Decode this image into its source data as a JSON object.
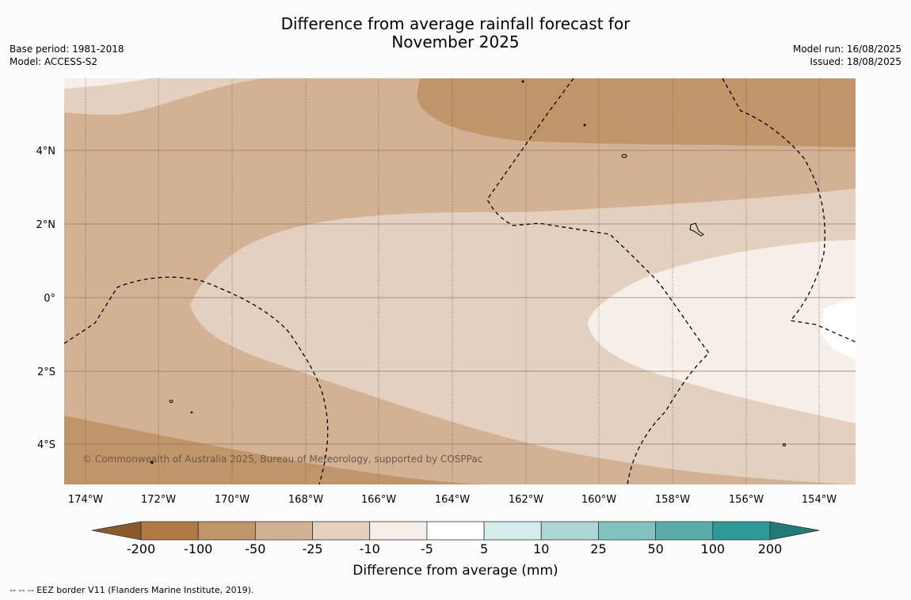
{
  "title_line1": "Difference from average rainfall forecast for",
  "title_line2": "November 2025",
  "base_period": "Base period: 1981-2018",
  "model": "Model: ACCESS-S2",
  "model_run": "Model run: 16/08/2025",
  "issued": "Issued: 18/08/2025",
  "credit": "© Commonwealth of Australia 2025, Bureau of Meteorology, supported by COSPPac",
  "footnote": "--  --  -- EEZ border V11 (Flanders Marine Institute, 2019).",
  "lon_ticks": [
    "174°W",
    "172°W",
    "170°W",
    "168°W",
    "166°W",
    "164°W",
    "162°W",
    "160°W",
    "158°W",
    "156°W",
    "154°W"
  ],
  "lat_ticks": [
    "4°N",
    "2°N",
    "0°",
    "2°S",
    "4°S"
  ],
  "colorbar": {
    "title": "Difference from average (mm)",
    "labels": [
      "-200",
      "-100",
      "-50",
      "-25",
      "-10",
      "-5",
      "5",
      "10",
      "25",
      "50",
      "100",
      "200"
    ],
    "colors": [
      "#8a5a2c",
      "#b07941",
      "#c1956a",
      "#d2b194",
      "#e3d0bf",
      "#f5eee9",
      "#ffffff",
      "#d6ecea",
      "#acd7d5",
      "#82c2c0",
      "#58adab",
      "#2f9997",
      "#207a78"
    ]
  }
}
